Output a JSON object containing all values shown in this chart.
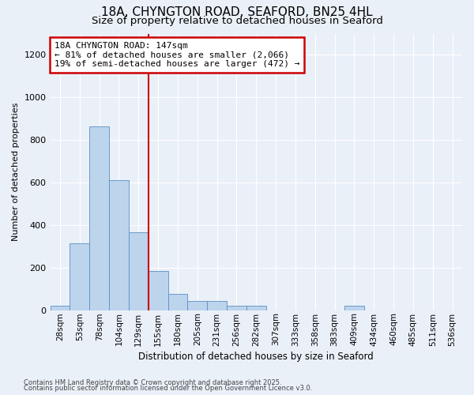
{
  "title1": "18A, CHYNGTON ROAD, SEAFORD, BN25 4HL",
  "title2": "Size of property relative to detached houses in Seaford",
  "xlabel": "Distribution of detached houses by size in Seaford",
  "ylabel": "Number of detached properties",
  "categories": [
    "28sqm",
    "53sqm",
    "78sqm",
    "104sqm",
    "129sqm",
    "155sqm",
    "180sqm",
    "205sqm",
    "231sqm",
    "256sqm",
    "282sqm",
    "307sqm",
    "333sqm",
    "358sqm",
    "383sqm",
    "409sqm",
    "434sqm",
    "460sqm",
    "485sqm",
    "511sqm",
    "536sqm"
  ],
  "values": [
    20,
    315,
    865,
    610,
    365,
    185,
    75,
    45,
    45,
    20,
    20,
    0,
    0,
    0,
    0,
    20,
    0,
    0,
    0,
    0,
    0
  ],
  "bar_color": "#bdd4ed",
  "bar_edge_color": "#5a8fc4",
  "highlight_line_color": "#cc0000",
  "annotation_text": "18A CHYNGTON ROAD: 147sqm\n← 81% of detached houses are smaller (2,066)\n19% of semi-detached houses are larger (472) →",
  "annotation_box_color": "#cc0000",
  "ylim": [
    0,
    1300
  ],
  "yticks": [
    0,
    200,
    400,
    600,
    800,
    1000,
    1200
  ],
  "footnote1": "Contains HM Land Registry data © Crown copyright and database right 2025.",
  "footnote2": "Contains public sector information licensed under the Open Government Licence v3.0.",
  "background_color": "#eaf0f8",
  "grid_color": "#ffffff",
  "title1_fontsize": 11,
  "title2_fontsize": 9.5
}
